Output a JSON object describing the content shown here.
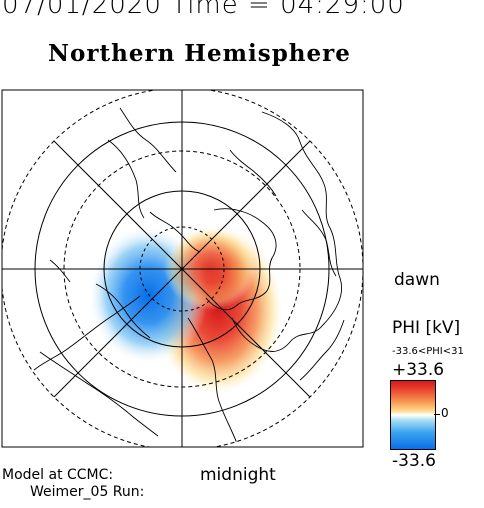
{
  "header": {
    "datetime": "07/01/2020 Time = 04:29:00",
    "title": "Northern Hemisphere"
  },
  "map": {
    "labels": {
      "dawn": "dawn",
      "midnight": "midnight"
    },
    "footer": {
      "model": "Model at CCMC:",
      "run": "Weimer_05 Run:"
    }
  },
  "colorbar": {
    "title": "PHI [kV]",
    "range_text": "-33.6<PHI<31",
    "max_label": "+33.6",
    "mid_label": "0",
    "min_label": "-33.6",
    "max": 33.6,
    "min": -33.6,
    "colors": {
      "positive": "#d7191c",
      "neutral": "#ffffff",
      "negative": "#0a6fe8"
    }
  }
}
